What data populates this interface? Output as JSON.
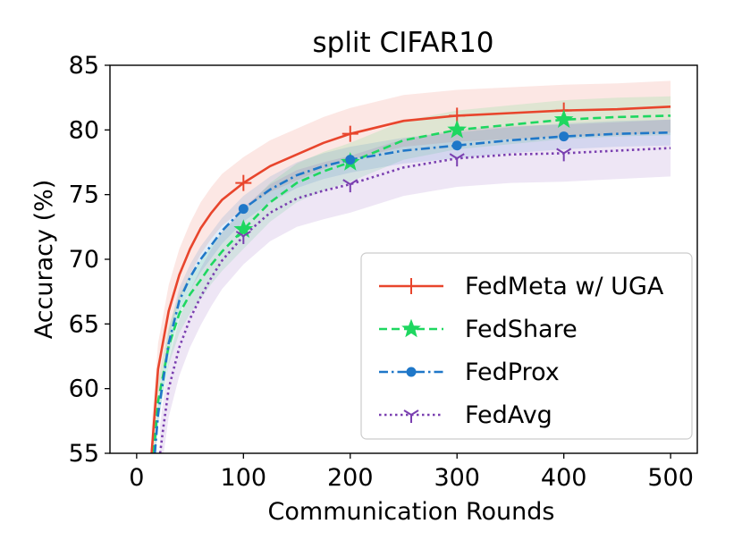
{
  "chart_data": {
    "type": "line",
    "title": "split CIFAR10",
    "xlabel": "Communication Rounds",
    "ylabel": "Accuracy (%)",
    "xlim": [
      -25,
      525
    ],
    "ylim": [
      55,
      85
    ],
    "xticks": [
      0,
      100,
      200,
      300,
      400,
      500
    ],
    "yticks": [
      55,
      60,
      65,
      70,
      75,
      80,
      85
    ],
    "grid": false,
    "legend_position": "lower-right",
    "series": [
      {
        "name": "FedMeta w/ UGA",
        "color": "#e8452c",
        "linestyle": "solid",
        "marker": "plus",
        "shade": 2.0,
        "x": [
          14,
          20,
          30,
          40,
          50,
          60,
          70,
          80,
          100,
          125,
          150,
          175,
          200,
          250,
          300,
          350,
          400,
          450,
          500
        ],
        "values": [
          55,
          61.5,
          66,
          68.8,
          70.8,
          72.4,
          73.6,
          74.6,
          75.9,
          77.2,
          78.1,
          79.0,
          79.7,
          80.7,
          81.1,
          81.3,
          81.5,
          81.6,
          81.8
        ],
        "marker_x": [
          100,
          200,
          300,
          400
        ],
        "marker_values": [
          75.9,
          79.7,
          81.1,
          81.5
        ]
      },
      {
        "name": "FedShare",
        "color": "#1ed760",
        "linestyle": "dashed",
        "marker": "star",
        "shade": 1.5,
        "x": [
          16,
          20,
          30,
          40,
          50,
          60,
          70,
          80,
          100,
          125,
          150,
          175,
          200,
          250,
          300,
          350,
          400,
          450,
          500
        ],
        "values": [
          55,
          59,
          63.3,
          65.8,
          67.3,
          68.4,
          69.6,
          70.6,
          72.3,
          74.4,
          75.9,
          76.8,
          77.5,
          79.2,
          80.0,
          80.4,
          80.8,
          81.0,
          81.1
        ],
        "marker_x": [
          100,
          200,
          300,
          400
        ],
        "marker_values": [
          72.3,
          77.5,
          80.0,
          80.8
        ]
      },
      {
        "name": "FedProx",
        "color": "#1f77c8",
        "linestyle": "dashdot",
        "marker": "circle",
        "shade": 1.0,
        "x": [
          17,
          20,
          30,
          40,
          50,
          60,
          70,
          80,
          100,
          125,
          150,
          175,
          200,
          250,
          300,
          350,
          400,
          450,
          500
        ],
        "values": [
          55,
          58,
          63.5,
          66.8,
          68.6,
          70.0,
          71.1,
          72.2,
          73.9,
          75.4,
          76.5,
          77.2,
          77.7,
          78.4,
          78.8,
          79.2,
          79.5,
          79.7,
          79.8
        ],
        "marker_x": [
          100,
          200,
          300,
          400
        ],
        "marker_values": [
          73.9,
          77.7,
          78.8,
          79.5
        ]
      },
      {
        "name": "FedAvg",
        "color": "#7a3fb0",
        "linestyle": "dotted",
        "marker": "tri_down",
        "shade": 2.2,
        "x": [
          22,
          25,
          30,
          40,
          50,
          60,
          70,
          80,
          100,
          125,
          150,
          175,
          200,
          250,
          300,
          350,
          400,
          450,
          500
        ],
        "values": [
          55,
          57,
          60,
          63.2,
          65.4,
          67.1,
          68.6,
          69.9,
          71.8,
          73.6,
          74.7,
          75.3,
          75.8,
          77.1,
          77.8,
          78.1,
          78.2,
          78.4,
          78.6
        ],
        "marker_x": [
          100,
          200,
          300,
          400
        ],
        "marker_values": [
          71.8,
          75.8,
          77.8,
          78.2
        ]
      }
    ]
  }
}
